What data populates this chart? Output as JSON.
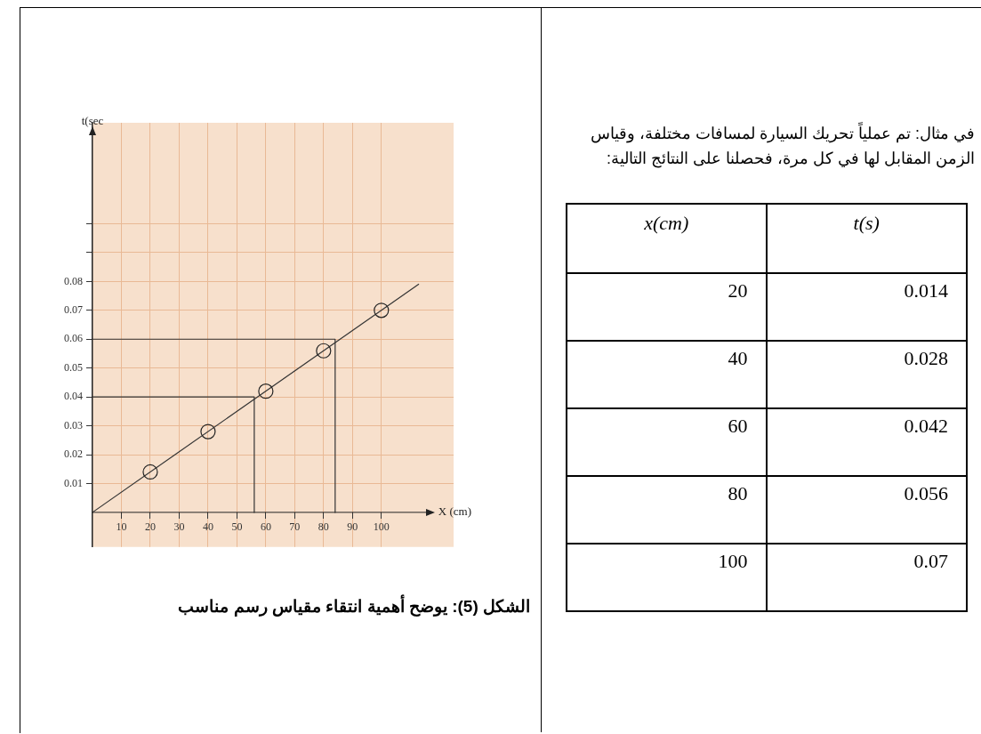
{
  "chart_data": {
    "type": "scatter",
    "title": "الشكل (5): يوضح أهمية انتقاء مقياس رسم مناسب",
    "xlabel": "X (cm)",
    "ylabel": "t(sec",
    "annotations": [
      "في مثال: تم عملياً تحريك السيارة لمسافات مختلفة، وقياس الزمن المقابل لها في كل مرة، فحصلنا على النتائج التالية:",
      "x(cm)",
      "t(s)",
      "20",
      "0.014",
      "40",
      "0.028",
      "60",
      "0.042",
      "80",
      "0.056",
      "100",
      "0.07"
    ],
    "x": [
      20,
      40,
      60,
      80,
      100
    ],
    "series": [
      {
        "color": "#222222",
        "values": [
          0.014,
          0.028,
          0.042,
          0.056,
          0.07
        ]
      },
      {
        "type": "line",
        "marker": "none",
        "color": "#333333",
        "x": [
          0,
          113
        ],
        "values": [
          0,
          0.0791
        ]
      },
      {
        "type": "line",
        "marker": "none",
        "color": "#333333",
        "x": [
          0,
          56,
          56
        ],
        "values": [
          0.04,
          0.04,
          0
        ]
      },
      {
        "type": "line",
        "marker": "none",
        "color": "#333333",
        "x": [
          0,
          84,
          84
        ],
        "values": [
          0.06,
          0.06,
          0
        ]
      }
    ],
    "xlim": [
      0,
      125
    ],
    "ylim": [
      -0.012,
      0.135
    ],
    "xticks": [
      10,
      20,
      30,
      40,
      50,
      60,
      70,
      80,
      90,
      100
    ],
    "yticks": [
      0.01,
      0.02,
      0.03,
      0.04,
      0.05,
      0.06,
      0.07,
      0.08,
      {
        "value": 0.09,
        "label": null
      },
      {
        "value": 0.1,
        "label": null
      }
    ],
    "grid": true,
    "marker": "circle"
  }
}
